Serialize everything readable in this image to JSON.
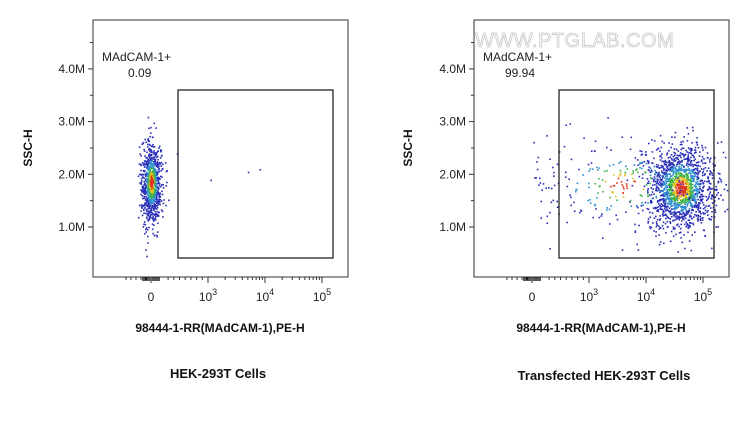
{
  "watermark": "WWW.PTGLAB.COM",
  "chart_data": [
    {
      "type": "scatter",
      "title": "",
      "caption": "HEK-293T Cells",
      "xlabel": "98444-1-RR(MAdCAM-1),PE-H",
      "ylabel": "SSC-H",
      "y_ticks": [
        "1.0M",
        "2.0M",
        "3.0M",
        "4.0M"
      ],
      "x_ticks": [
        {
          "base": "0",
          "exp": ""
        },
        {
          "base": "10",
          "exp": "3"
        },
        {
          "base": "10",
          "exp": "4"
        },
        {
          "base": "10",
          "exp": "5"
        }
      ],
      "gate": {
        "name": "MAdCAM-1+",
        "percent": "0.09"
      },
      "populations": [
        {
          "x": 0,
          "y": 1.85,
          "x_spread": 10,
          "y_spread": 0.38,
          "count": 900
        }
      ],
      "outliers": [
        [
          450,
          2.4
        ],
        [
          1100,
          1.9
        ],
        [
          5000,
          2.05
        ],
        [
          8000,
          2.1
        ]
      ]
    },
    {
      "type": "scatter",
      "title": "",
      "caption": "Transfected HEK-293T Cells",
      "xlabel": "98444-1-RR(MAdCAM-1),PE-H",
      "ylabel": "SSC-H",
      "y_ticks": [
        "1.0M",
        "2.0M",
        "3.0M",
        "4.0M"
      ],
      "x_ticks": [
        {
          "base": "0",
          "exp": ""
        },
        {
          "base": "10",
          "exp": "3"
        },
        {
          "base": "10",
          "exp": "4"
        },
        {
          "base": "10",
          "exp": "5"
        }
      ],
      "gate": {
        "name": "MAdCAM-1+",
        "percent": "99.94"
      },
      "populations": [
        {
          "x": 40000,
          "y": 1.75,
          "x_spread": 0.9,
          "y_spread": 0.4,
          "count": 1500
        },
        {
          "x": 4000,
          "y": 1.8,
          "x_spread": 2.2,
          "y_spread": 0.45,
          "count": 250
        }
      ],
      "outliers": [
        [
          300,
          2.3
        ],
        [
          600,
          1.1
        ],
        [
          900,
          2.7
        ],
        [
          150,
          1.5
        ]
      ]
    }
  ]
}
